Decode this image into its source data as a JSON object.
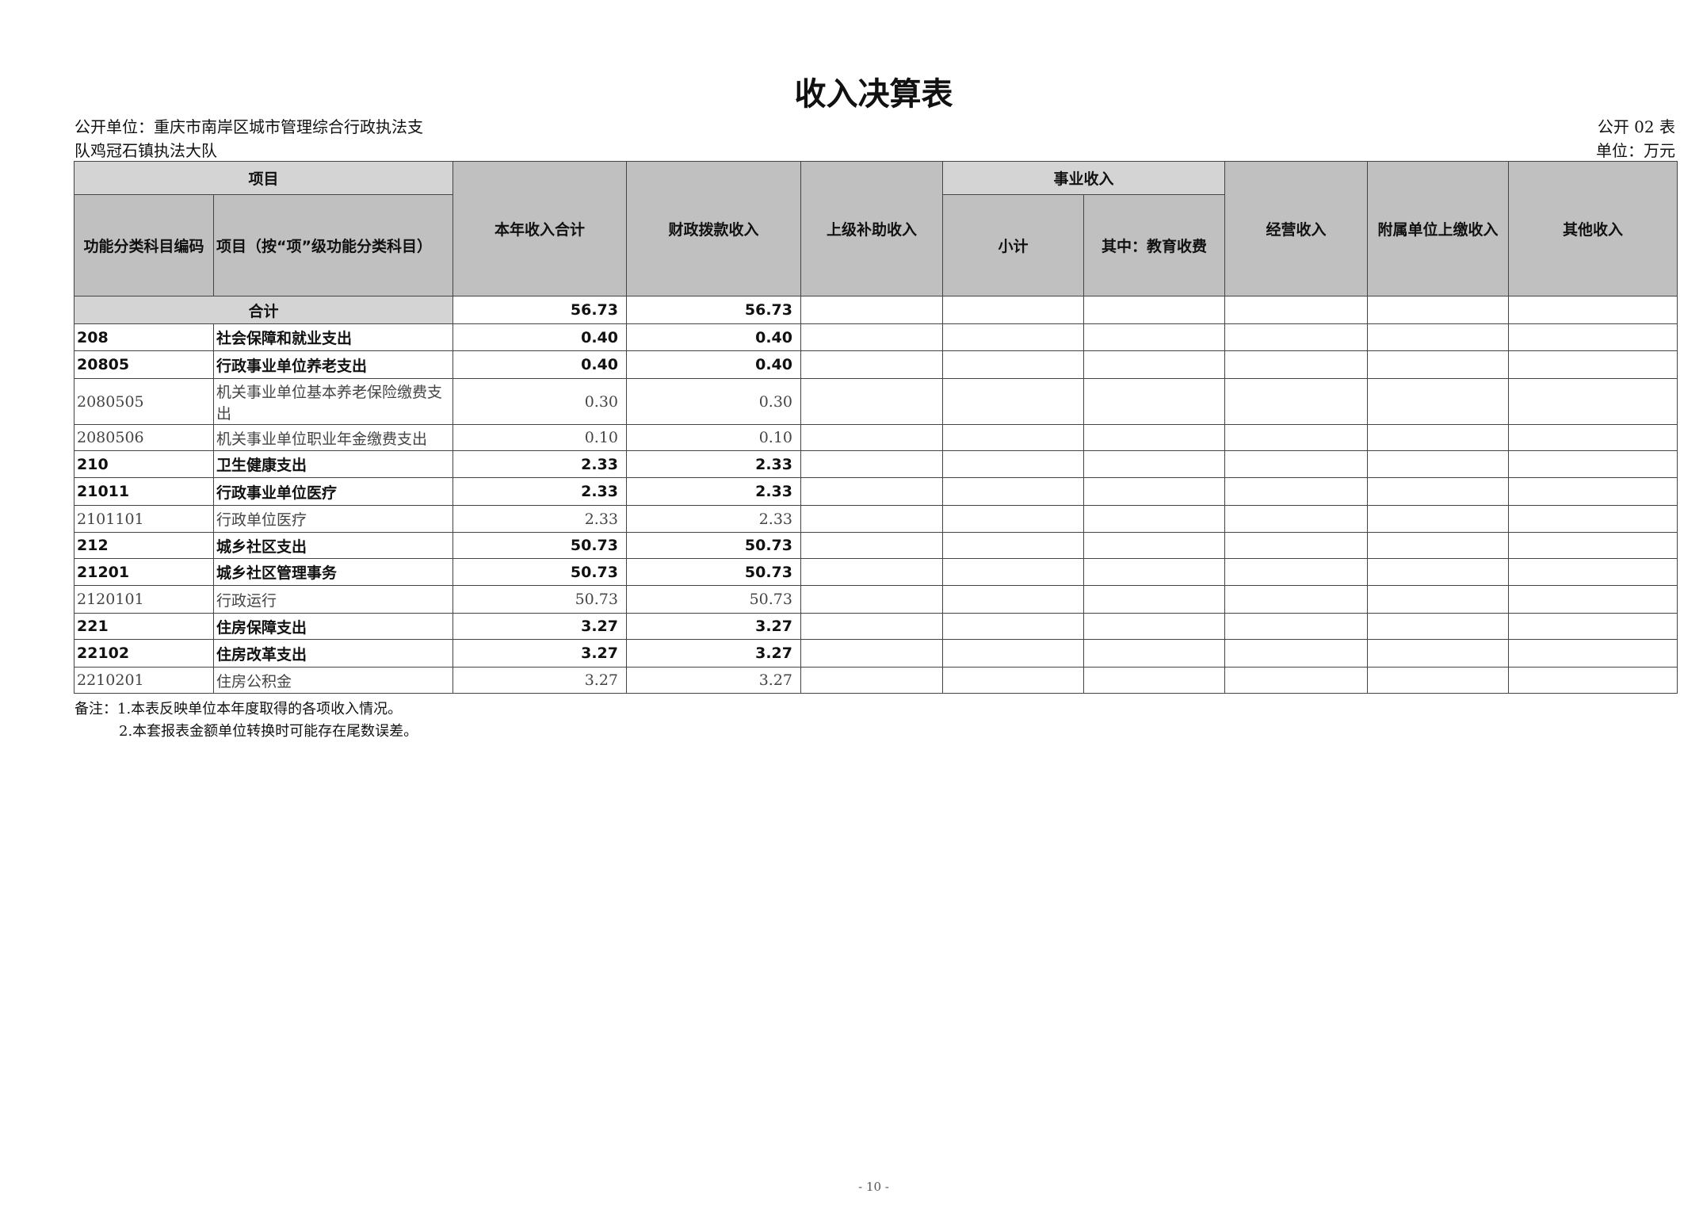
{
  "title": "收入决算表",
  "unit_name_line1": "公开单位：重庆市南岸区城市管理综合行政执法支",
  "unit_name_line2": "队鸡冠石镇执法大队",
  "form_no": "公开 02 表",
  "unit": "单位：万元",
  "headers": {
    "item": "项目",
    "code": "功能分类科目编码",
    "name": "项目（按“项”级功能分类科目）",
    "total": "本年收入合计",
    "fiscal": "财政拨款收入",
    "superior": "上级补助收入",
    "business": "事业收入",
    "subtotal": "小计",
    "education": "其中：教育收费",
    "operating": "经营收入",
    "affiliated": "附属单位上缴收入",
    "other": "其他收入"
  },
  "total_row": {
    "label": "合计",
    "total": "56.73",
    "fiscal": "56.73"
  },
  "rows": [
    {
      "code": "208",
      "name": "社会保障和就业支出",
      "total": "0.40",
      "fiscal": "0.40",
      "bold": true
    },
    {
      "code": "20805",
      "name": "行政事业单位养老支出",
      "total": "0.40",
      "fiscal": "0.40",
      "bold": true
    },
    {
      "code": "2080505",
      "name": "机关事业单位基本养老保险缴费支出",
      "total": "0.30",
      "fiscal": "0.30",
      "bold": false
    },
    {
      "code": "2080506",
      "name": "机关事业单位职业年金缴费支出",
      "total": "0.10",
      "fiscal": "0.10",
      "bold": false
    },
    {
      "code": "210",
      "name": "卫生健康支出",
      "total": "2.33",
      "fiscal": "2.33",
      "bold": true
    },
    {
      "code": "21011",
      "name": "行政事业单位医疗",
      "total": "2.33",
      "fiscal": "2.33",
      "bold": true
    },
    {
      "code": "2101101",
      "name": "行政单位医疗",
      "total": "2.33",
      "fiscal": "2.33",
      "bold": false
    },
    {
      "code": "212",
      "name": "城乡社区支出",
      "total": "50.73",
      "fiscal": "50.73",
      "bold": true
    },
    {
      "code": "21201",
      "name": "城乡社区管理事务",
      "total": "50.73",
      "fiscal": "50.73",
      "bold": true
    },
    {
      "code": "2120101",
      "name": "行政运行",
      "total": "50.73",
      "fiscal": "50.73",
      "bold": false
    },
    {
      "code": "221",
      "name": "住房保障支出",
      "total": "3.27",
      "fiscal": "3.27",
      "bold": true
    },
    {
      "code": "22102",
      "name": "住房改革支出",
      "total": "3.27",
      "fiscal": "3.27",
      "bold": true
    },
    {
      "code": "2210201",
      "name": "住房公积金",
      "total": "3.27",
      "fiscal": "3.27",
      "bold": false
    }
  ],
  "notes": [
    "备注：1.本表反映单位本年度取得的各项收入情况。",
    "2.本套报表金额单位转换时可能存在尾数误差。"
  ],
  "page_number": "- 10 -"
}
